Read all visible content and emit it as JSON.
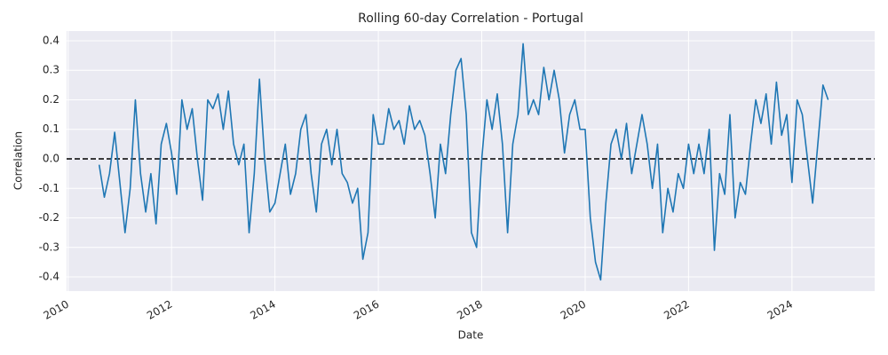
{
  "chart_data": {
    "type": "line",
    "title": "Rolling 60-day Correlation - Portugal",
    "xlabel": "Date",
    "ylabel": "Correlation",
    "x": [
      2010.6,
      2010.7,
      2010.8,
      2010.9,
      2011.0,
      2011.1,
      2011.2,
      2011.3,
      2011.4,
      2011.5,
      2011.6,
      2011.7,
      2011.8,
      2011.9,
      2012.0,
      2012.1,
      2012.2,
      2012.3,
      2012.4,
      2012.5,
      2012.6,
      2012.7,
      2012.8,
      2012.9,
      2013.0,
      2013.1,
      2013.2,
      2013.3,
      2013.4,
      2013.5,
      2013.6,
      2013.7,
      2013.8,
      2013.9,
      2014.0,
      2014.1,
      2014.2,
      2014.3,
      2014.4,
      2014.5,
      2014.6,
      2014.7,
      2014.8,
      2014.9,
      2015.0,
      2015.1,
      2015.2,
      2015.3,
      2015.4,
      2015.5,
      2015.6,
      2015.7,
      2015.8,
      2015.9,
      2016.0,
      2016.1,
      2016.2,
      2016.3,
      2016.4,
      2016.5,
      2016.6,
      2016.7,
      2016.8,
      2016.9,
      2017.0,
      2017.1,
      2017.2,
      2017.3,
      2017.4,
      2017.5,
      2017.6,
      2017.7,
      2017.8,
      2017.9,
      2018.0,
      2018.1,
      2018.2,
      2018.3,
      2018.4,
      2018.5,
      2018.6,
      2018.7,
      2018.8,
      2018.9,
      2019.0,
      2019.1,
      2019.2,
      2019.3,
      2019.4,
      2019.5,
      2019.6,
      2019.7,
      2019.8,
      2019.9,
      2020.0,
      2020.1,
      2020.2,
      2020.3,
      2020.4,
      2020.5,
      2020.6,
      2020.7,
      2020.8,
      2020.9,
      2021.0,
      2021.1,
      2021.2,
      2021.3,
      2021.4,
      2021.5,
      2021.6,
      2021.7,
      2021.8,
      2021.9,
      2022.0,
      2022.1,
      2022.2,
      2022.3,
      2022.4,
      2022.5,
      2022.6,
      2022.7,
      2022.8,
      2022.9,
      2023.0,
      2023.1,
      2023.2,
      2023.3,
      2023.4,
      2023.5,
      2023.6,
      2023.7,
      2023.8,
      2023.9,
      2024.0,
      2024.1,
      2024.2,
      2024.3,
      2024.4,
      2024.5,
      2024.6,
      2024.7
    ],
    "series": [
      {
        "name": "Correlation",
        "color": "#1f77b4",
        "values": [
          -0.02,
          -0.13,
          -0.05,
          0.09,
          -0.08,
          -0.25,
          -0.1,
          0.2,
          -0.05,
          -0.18,
          -0.05,
          -0.22,
          0.05,
          0.12,
          0.02,
          -0.12,
          0.2,
          0.1,
          0.17,
          0.0,
          -0.14,
          0.2,
          0.17,
          0.22,
          0.1,
          0.23,
          0.05,
          -0.02,
          0.05,
          -0.25,
          -0.05,
          0.27,
          0.0,
          -0.18,
          -0.15,
          -0.05,
          0.05,
          -0.12,
          -0.05,
          0.1,
          0.15,
          -0.05,
          -0.18,
          0.05,
          0.1,
          -0.02,
          0.1,
          -0.05,
          -0.08,
          -0.15,
          -0.1,
          -0.34,
          -0.25,
          0.15,
          0.05,
          0.05,
          0.17,
          0.1,
          0.13,
          0.05,
          0.18,
          0.1,
          0.13,
          0.08,
          -0.05,
          -0.2,
          0.05,
          -0.05,
          0.15,
          0.3,
          0.34,
          0.15,
          -0.25,
          -0.3,
          0.0,
          0.2,
          0.1,
          0.22,
          0.05,
          -0.25,
          0.05,
          0.15,
          0.39,
          0.15,
          0.2,
          0.15,
          0.31,
          0.2,
          0.3,
          0.2,
          0.02,
          0.15,
          0.2,
          0.1,
          0.1,
          -0.2,
          -0.35,
          -0.41,
          -0.15,
          0.05,
          0.1,
          0.0,
          0.12,
          -0.05,
          0.05,
          0.15,
          0.05,
          -0.1,
          0.05,
          -0.25,
          -0.1,
          -0.18,
          -0.05,
          -0.1,
          0.05,
          -0.05,
          0.05,
          -0.05,
          0.1,
          -0.31,
          -0.05,
          -0.12,
          0.15,
          -0.2,
          -0.08,
          -0.12,
          0.05,
          0.2,
          0.12,
          0.22,
          0.05,
          0.26,
          0.08,
          0.15,
          -0.08,
          0.2,
          0.15,
          0.0,
          -0.15,
          0.05,
          0.25,
          0.2
        ]
      }
    ],
    "xlim": [
      2009.97,
      2025.6
    ],
    "xticks": [
      2010,
      2012,
      2014,
      2016,
      2018,
      2020,
      2022,
      2024
    ],
    "ylim": [
      -0.448,
      0.433
    ],
    "yticks": [
      -0.4,
      -0.3,
      -0.2,
      -0.1,
      {
        "value": 0,
        "label": "0.0"
      },
      0.1,
      0.2,
      0.3,
      0.4
    ],
    "grid": true,
    "zero_line": 0
  }
}
